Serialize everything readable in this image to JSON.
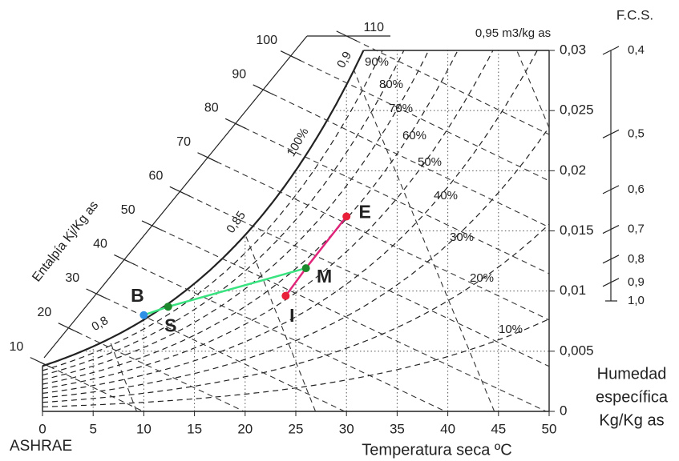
{
  "chart_data": {
    "type": "psychrometric",
    "x_label": "Temperatura seca ºC",
    "y_label": [
      "Humedad",
      "específica",
      "Kg/Kg as"
    ],
    "footnote": "ASHRAE",
    "xlim": [
      0,
      50
    ],
    "xticks": [
      0,
      5,
      10,
      15,
      20,
      25,
      30,
      35,
      40,
      45,
      50
    ],
    "ylim": [
      0,
      0.03
    ],
    "yticks": [
      0,
      {
        "value": 0.005,
        "label": "0,005"
      },
      {
        "value": 0.01,
        "label": "0,01"
      },
      {
        "value": 0.015,
        "label": "0,015"
      },
      {
        "value": 0.02,
        "label": "0,02"
      },
      {
        "value": 0.025,
        "label": "0,025"
      },
      {
        "value": 0.03,
        "label": "0,03"
      }
    ],
    "grid": true,
    "relative_humidity": {
      "values": [
        10,
        20,
        30,
        40,
        50,
        60,
        70,
        80,
        90,
        100
      ],
      "value_labels": [
        "10%",
        "20%",
        "30%",
        "40%",
        "50%",
        "60%",
        "70%",
        "80%",
        "90%",
        "100%"
      ]
    },
    "enthalpy": {
      "label": "Entalpía Kj/Kg as",
      "ticks": [
        10,
        20,
        30,
        40,
        50,
        60,
        70,
        80,
        90,
        100,
        110
      ]
    },
    "specific_volume": {
      "ticks": [
        {
          "value": 0.8,
          "label": "0,8"
        },
        {
          "value": 0.85,
          "label": "0,85"
        },
        {
          "value": 0.9,
          "label": "0,9"
        },
        {
          "value": 0.95,
          "label": "0,95 m3/kg as"
        }
      ]
    },
    "fcs": {
      "title": "F.C.S.",
      "lim": [
        0.4,
        1.0
      ],
      "ticks": [
        {
          "value": 0.4,
          "label": "0,4"
        },
        {
          "value": 0.5,
          "label": "0,5"
        },
        {
          "value": 0.6,
          "label": "0,6"
        },
        {
          "value": 0.7,
          "label": "0,7"
        },
        {
          "value": 0.8,
          "label": "0,8"
        },
        {
          "value": 0.9,
          "label": "0,9"
        },
        {
          "value": 1.0,
          "label": "1,0"
        }
      ]
    },
    "points": [
      {
        "name": "B",
        "x": 10,
        "y": 0.008,
        "color": "#2e8fe6"
      },
      {
        "name": "S",
        "x": 12.4,
        "y": 0.0087,
        "color": "#1c8a2c"
      },
      {
        "name": "M",
        "x": 26,
        "y": 0.0119,
        "color": "#1c8a2c"
      },
      {
        "name": "I",
        "x": 24,
        "y": 0.0096,
        "color": "#e8203a"
      },
      {
        "name": "E",
        "x": 30,
        "y": 0.0162,
        "color": "#e8203a"
      }
    ],
    "process_lines": [
      {
        "color": "#39e37f",
        "x": [
          10,
          12.4,
          26
        ],
        "y": [
          0.008,
          0.0087,
          0.0119
        ]
      },
      {
        "color": "#e0257a",
        "x": [
          24,
          26,
          30
        ],
        "y": [
          0.0096,
          0.0119,
          0.0162
        ]
      }
    ]
  }
}
